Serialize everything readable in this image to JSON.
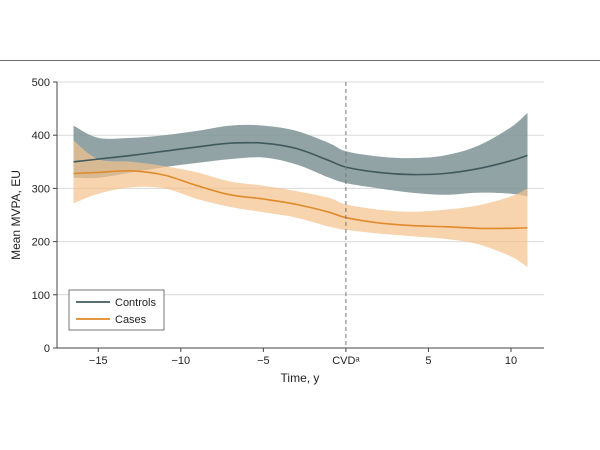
{
  "chart_data": {
    "type": "line",
    "title": "",
    "xlabel": "Time, y",
    "ylabel": "Mean MVPA, EU",
    "xlim": [
      -17.5,
      12
    ],
    "ylim": [
      0,
      500
    ],
    "x_ticks": [
      {
        "value": -15,
        "label": "−15"
      },
      {
        "value": -10,
        "label": "−10"
      },
      {
        "value": -5,
        "label": "−5"
      },
      {
        "value": 0,
        "label": "CVDᵃ"
      },
      {
        "value": 5,
        "label": "5"
      },
      {
        "value": 10,
        "label": "10"
      }
    ],
    "y_ticks": [
      0,
      100,
      200,
      300,
      400,
      500
    ],
    "grid": {
      "horizontal": true,
      "vertical": false
    },
    "reference_line": {
      "x": 0,
      "style": "dashed"
    },
    "legend": {
      "position": "bottom-left"
    },
    "series": [
      {
        "name": "Controls",
        "color": "#3f5a5e",
        "band_color": "#7e9394",
        "x": [
          -16.5,
          -15,
          -13,
          -11,
          -9,
          -7,
          -5,
          -3,
          -1,
          0,
          2,
          4,
          6,
          8,
          10,
          11
        ],
        "y": [
          350,
          355,
          362,
          370,
          378,
          385,
          385,
          375,
          352,
          340,
          330,
          326,
          328,
          337,
          352,
          362
        ],
        "lower": [
          320,
          320,
          330,
          340,
          348,
          355,
          358,
          345,
          320,
          310,
          300,
          292,
          288,
          292,
          290,
          285
        ],
        "upper": [
          418,
          395,
          395,
          400,
          408,
          418,
          418,
          408,
          385,
          370,
          360,
          357,
          362,
          380,
          415,
          442
        ]
      },
      {
        "name": "Cases",
        "color": "#e08a2a",
        "band_color": "#f5c28c",
        "x": [
          -16.5,
          -15,
          -13,
          -11,
          -9,
          -7,
          -5,
          -3,
          -1,
          0,
          2,
          4,
          6,
          8,
          10,
          11
        ],
        "y": [
          328,
          330,
          333,
          325,
          305,
          288,
          280,
          270,
          255,
          245,
          235,
          230,
          228,
          225,
          225,
          226
        ],
        "lower": [
          272,
          290,
          302,
          300,
          280,
          265,
          255,
          245,
          228,
          222,
          215,
          210,
          205,
          195,
          172,
          152
        ],
        "upper": [
          390,
          355,
          350,
          342,
          330,
          313,
          305,
          295,
          282,
          270,
          260,
          256,
          260,
          268,
          285,
          300
        ]
      }
    ]
  }
}
